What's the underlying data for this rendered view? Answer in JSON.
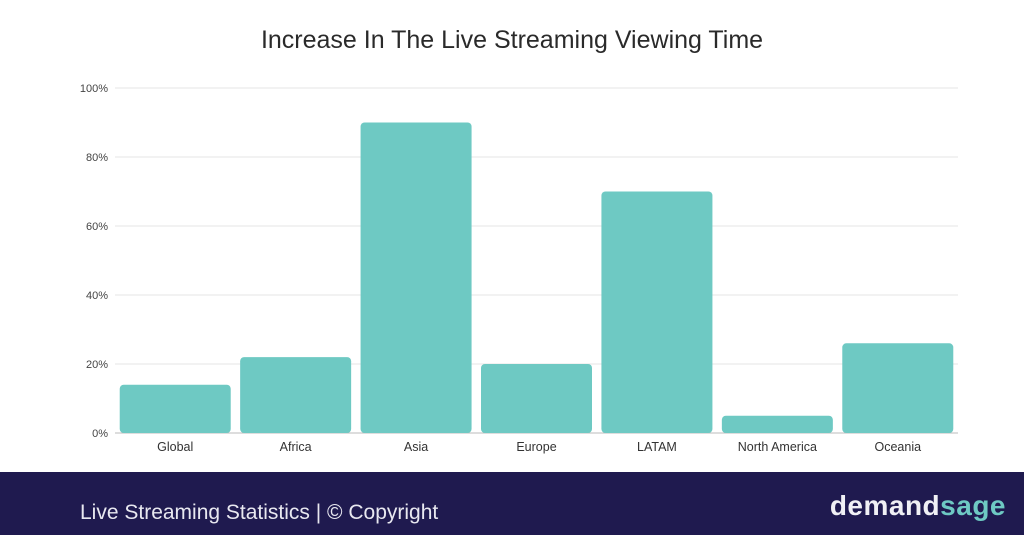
{
  "chart_data": {
    "type": "bar",
    "title": "Increase In The Live Streaming Viewing Time",
    "categories": [
      "Global",
      "Africa",
      "Asia",
      "Europe",
      "LATAM",
      "North America",
      "Oceania"
    ],
    "values": [
      14,
      22,
      90,
      20,
      70,
      5,
      26
    ],
    "xlabel": "",
    "ylabel": "",
    "ylim": [
      0,
      100
    ],
    "yticks": [
      "0%",
      "20%",
      "40%",
      "60%",
      "80%",
      "100%"
    ],
    "grid": true,
    "bar_color": "#6ec9c3"
  },
  "footer": {
    "text": "Live Streaming Statistics | © Copyright",
    "logo_part1": "demand",
    "logo_part2": "sage",
    "background": "#1f1a4f"
  }
}
